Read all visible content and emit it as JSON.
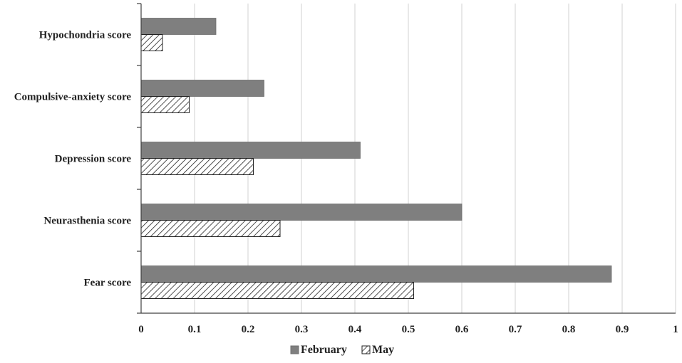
{
  "chart_data": {
    "type": "bar",
    "orientation": "horizontal",
    "categories": [
      "Hypochondria score",
      "Compulsive-anxiety score",
      "Depression score",
      "Neurasthenia score",
      "Fear score"
    ],
    "series": [
      {
        "name": "February",
        "values": [
          0.14,
          0.23,
          0.41,
          0.6,
          0.88
        ],
        "color": "#7f7f7f",
        "pattern": "solid"
      },
      {
        "name": "May",
        "values": [
          0.04,
          0.09,
          0.21,
          0.26,
          0.51
        ],
        "color": "#ffffff",
        "pattern": "diagonal-hatch"
      }
    ],
    "xlim": [
      0,
      1
    ],
    "xticks": [
      "0",
      "0.1",
      "0.2",
      "0.3",
      "0.4",
      "0.5",
      "0.6",
      "0.7",
      "0.8",
      "0.9",
      "1"
    ],
    "grid": "vertical",
    "legend_position": "bottom"
  }
}
